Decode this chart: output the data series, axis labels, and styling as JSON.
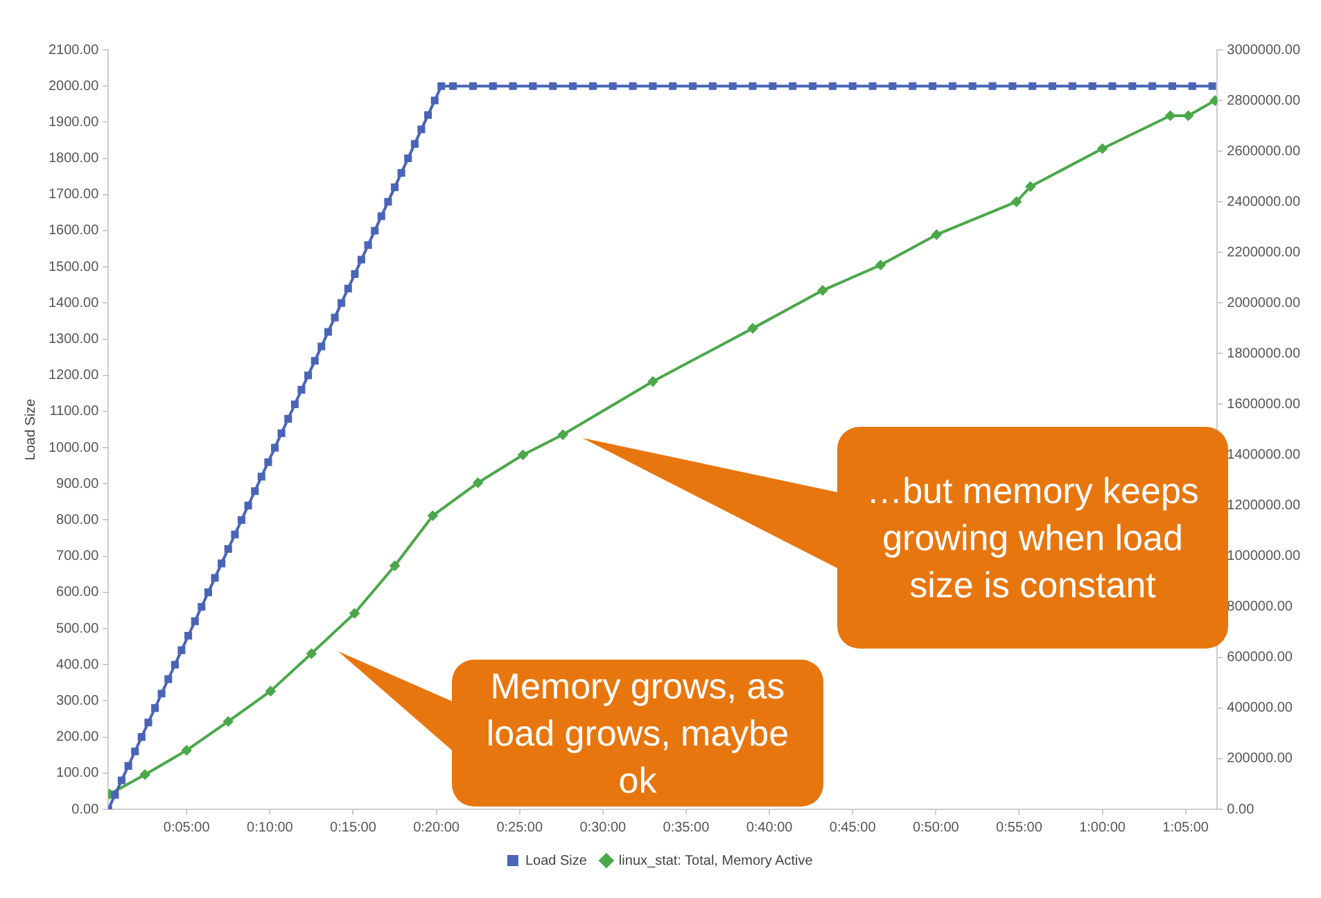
{
  "chart_data": {
    "type": "line",
    "ylabel": "Load Size",
    "xlim": [
      0.005,
      1.115
    ],
    "xticks": [
      {
        "value": 0.0833,
        "label": "0:05:00"
      },
      {
        "value": 0.1667,
        "label": "0:10:00"
      },
      {
        "value": 0.25,
        "label": "0:15:00"
      },
      {
        "value": 0.3333,
        "label": "0:20:00"
      },
      {
        "value": 0.4167,
        "label": "0:25:00"
      },
      {
        "value": 0.5,
        "label": "0:30:00"
      },
      {
        "value": 0.5833,
        "label": "0:35:00"
      },
      {
        "value": 0.6667,
        "label": "0:40:00"
      },
      {
        "value": 0.75,
        "label": "0:45:00"
      },
      {
        "value": 0.8333,
        "label": "0:50:00"
      },
      {
        "value": 0.9167,
        "label": "0:55:00"
      },
      {
        "value": 1.0,
        "label": "1:00:00"
      },
      {
        "value": 1.0833,
        "label": "1:05:00"
      }
    ],
    "ylim": [
      0,
      2100
    ],
    "yticks": [
      {
        "value": 0,
        "label": "0.00"
      },
      {
        "value": 100,
        "label": "100.00"
      },
      {
        "value": 200,
        "label": "200.00"
      },
      {
        "value": 300,
        "label": "300.00"
      },
      {
        "value": 400,
        "label": "400.00"
      },
      {
        "value": 500,
        "label": "500.00"
      },
      {
        "value": 600,
        "label": "600.00"
      },
      {
        "value": 700,
        "label": "700.00"
      },
      {
        "value": 800,
        "label": "800.00"
      },
      {
        "value": 900,
        "label": "900.00"
      },
      {
        "value": 1000,
        "label": "1000.00"
      },
      {
        "value": 1100,
        "label": "1100.00"
      },
      {
        "value": 1200,
        "label": "1200.00"
      },
      {
        "value": 1300,
        "label": "1300.00"
      },
      {
        "value": 1400,
        "label": "1400.00"
      },
      {
        "value": 1500,
        "label": "1500.00"
      },
      {
        "value": 1600,
        "label": "1600.00"
      },
      {
        "value": 1700,
        "label": "1700.00"
      },
      {
        "value": 1800,
        "label": "1800.00"
      },
      {
        "value": 1900,
        "label": "1900.00"
      },
      {
        "value": 2000,
        "label": "2000.00"
      },
      {
        "value": 2100,
        "label": "2100.00"
      }
    ],
    "y2lim": [
      0,
      3000000
    ],
    "y2ticks": [
      {
        "value": 0,
        "label": "0.00"
      },
      {
        "value": 200000,
        "label": "200000.00"
      },
      {
        "value": 400000,
        "label": "400000.00"
      },
      {
        "value": 600000,
        "label": "600000.00"
      },
      {
        "value": 800000,
        "label": "800000.00"
      },
      {
        "value": 1000000,
        "label": "1000000.00"
      },
      {
        "value": 1200000,
        "label": "1200000.00"
      },
      {
        "value": 1400000,
        "label": "1400000.00"
      },
      {
        "value": 1600000,
        "label": "1600000.00"
      },
      {
        "value": 1800000,
        "label": "1800000.00"
      },
      {
        "value": 2000000,
        "label": "2000000.00"
      },
      {
        "value": 2200000,
        "label": "2200000.00"
      },
      {
        "value": 2400000,
        "label": "2400000.00"
      },
      {
        "value": 2600000,
        "label": "2600000.00"
      },
      {
        "value": 2800000,
        "label": "2800000.00"
      },
      {
        "value": 3000000,
        "label": "3000000.00"
      }
    ],
    "grid": false,
    "legend": "bottom",
    "line_style": "solid",
    "series": [
      {
        "name": "Load Size",
        "color": "#4a64b8",
        "marker": "square",
        "x": [
          0.005,
          0.0117,
          0.0183,
          0.025,
          0.0317,
          0.0383,
          0.045,
          0.0517,
          0.0583,
          0.065,
          0.0717,
          0.0783,
          0.085,
          0.0917,
          0.0983,
          0.105,
          0.1117,
          0.1183,
          0.125,
          0.1317,
          0.1383,
          0.145,
          0.1517,
          0.1583,
          0.165,
          0.1717,
          0.1783,
          0.185,
          0.1917,
          0.1983,
          0.205,
          0.2117,
          0.2183,
          0.225,
          0.2317,
          0.2383,
          0.245,
          0.2517,
          0.2583,
          0.265,
          0.2717,
          0.2783,
          0.285,
          0.2917,
          0.2983,
          0.305,
          0.3117,
          0.3183,
          0.325,
          0.3317,
          0.3383,
          0.35,
          0.37,
          0.39,
          0.41,
          0.43,
          0.45,
          0.47,
          0.49,
          0.51,
          0.53,
          0.55,
          0.57,
          0.59,
          0.61,
          0.63,
          0.65,
          0.67,
          0.69,
          0.71,
          0.73,
          0.75,
          0.77,
          0.79,
          0.81,
          0.83,
          0.85,
          0.87,
          0.89,
          0.91,
          0.93,
          0.95,
          0.97,
          0.99,
          1.01,
          1.03,
          1.05,
          1.07,
          1.09,
          1.11
        ],
        "values": [
          0,
          40,
          80,
          120,
          160,
          200,
          240,
          280,
          320,
          360,
          400,
          440,
          480,
          520,
          560,
          600,
          640,
          680,
          720,
          760,
          800,
          840,
          880,
          920,
          960,
          1000,
          1040,
          1080,
          1120,
          1160,
          1200,
          1240,
          1280,
          1320,
          1360,
          1400,
          1440,
          1480,
          1520,
          1560,
          1600,
          1640,
          1680,
          1720,
          1760,
          1800,
          1840,
          1880,
          1920,
          1960,
          2000,
          2000,
          2000,
          2000,
          2000,
          2000,
          2000,
          2000,
          2000,
          2000,
          2000,
          2000,
          2000,
          2000,
          2000,
          2000,
          2000,
          2000,
          2000,
          2000,
          2000,
          2000,
          2000,
          2000,
          2000,
          2000,
          2000,
          2000,
          2000,
          2000,
          2000,
          2000,
          2000,
          2000,
          2000,
          2000,
          2000,
          2000,
          2000,
          2000
        ]
      },
      {
        "name": "linux_stat: Total, Memory Active",
        "color": "#4aa84a",
        "marker": "diamond",
        "axis": "y2",
        "x": [
          0.0063,
          0.0417,
          0.0833,
          0.125,
          0.1674,
          0.2083,
          0.2514,
          0.2917,
          0.3298,
          0.375,
          0.42,
          0.46,
          0.55,
          0.65,
          0.72,
          0.778,
          0.834,
          0.914,
          0.928,
          1.0,
          1.068,
          1.086,
          1.1127
        ],
        "values": [
          60000,
          137000,
          233000,
          347000,
          467000,
          615000,
          774000,
          962000,
          1160000,
          1290000,
          1400000,
          1480000,
          1690000,
          1900000,
          2050000,
          2150000,
          2270000,
          2400000,
          2460000,
          2610000,
          2740000,
          2740000,
          2800000
        ]
      }
    ],
    "annotations": [
      "Memory grows, as load grows, maybe ok",
      "…but memory keeps growing when load size is constant"
    ]
  }
}
